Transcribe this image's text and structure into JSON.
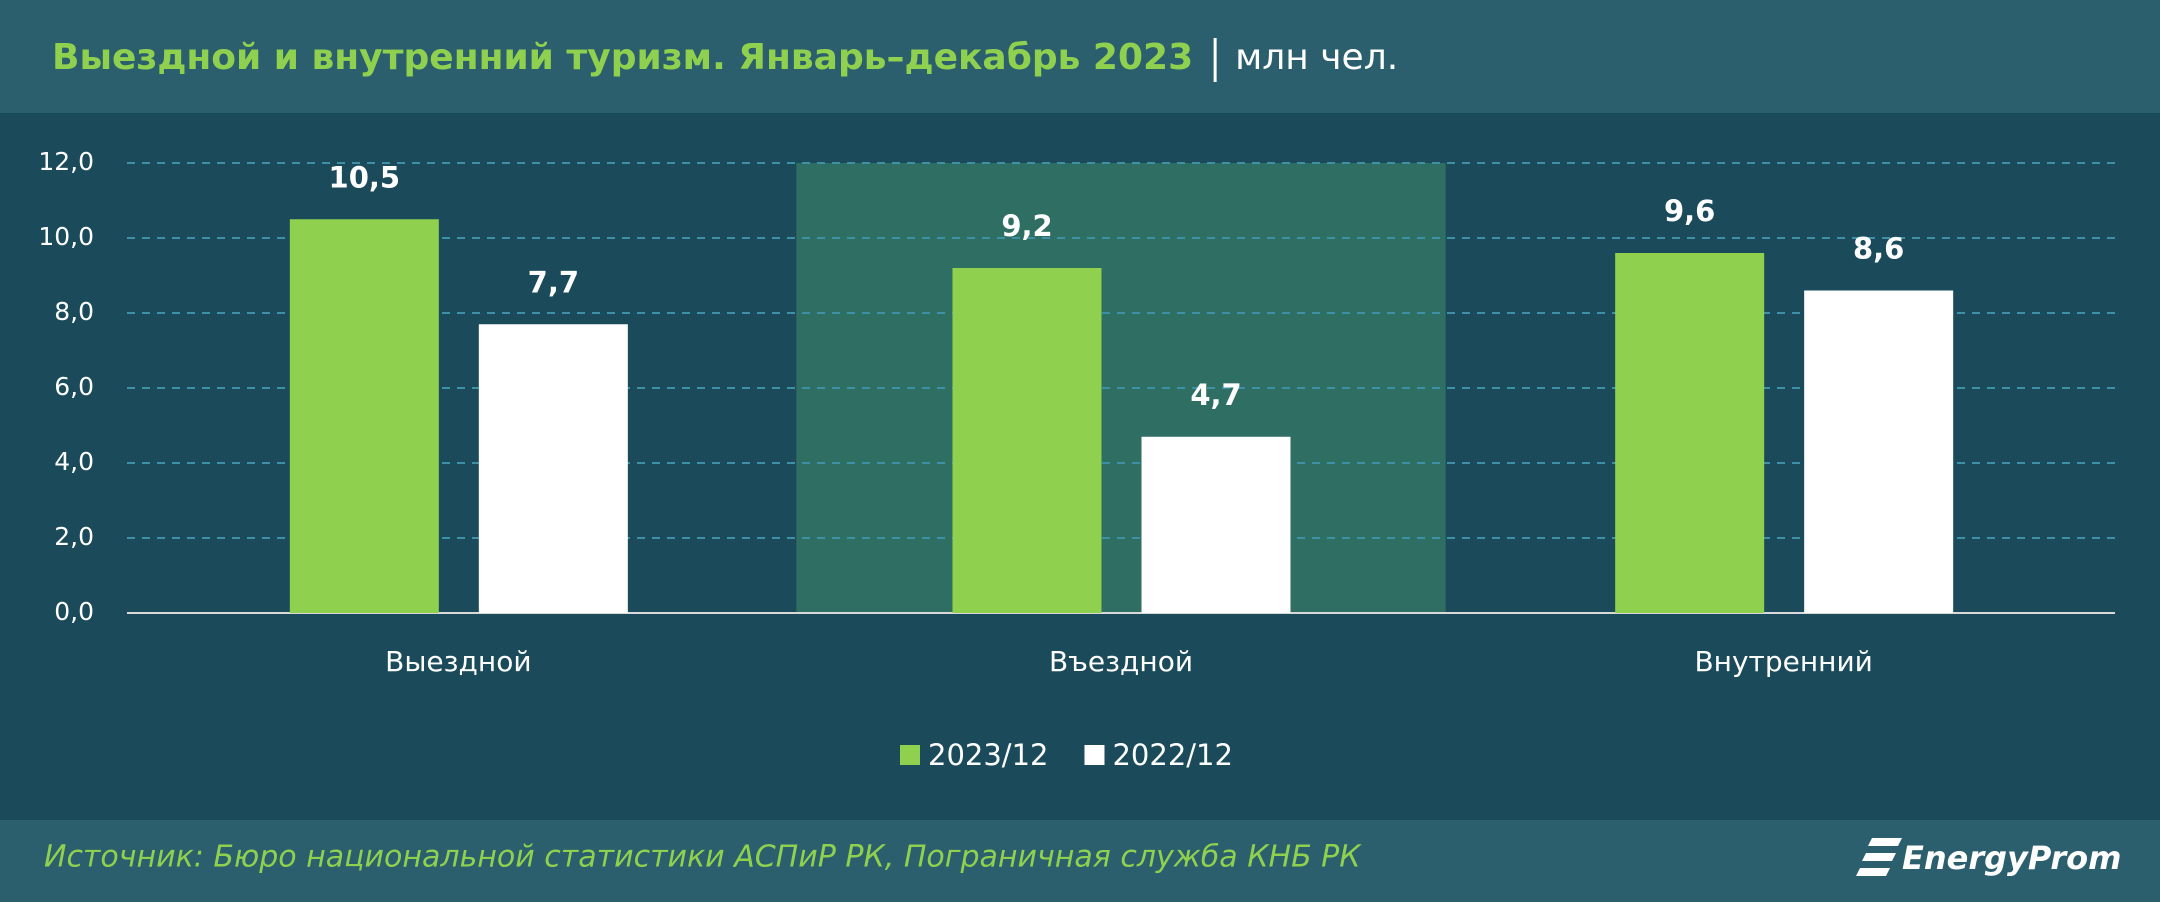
{
  "chart_data": {
    "type": "bar",
    "title": "Выездной и внутренний туризм. Январь–декабрь 2023",
    "unit": "млн чел.",
    "categories": [
      "Выездной",
      "Въездной",
      "Внутренний"
    ],
    "series": [
      {
        "name": "2023/12",
        "color": "#8fd14f",
        "values": [
          10.5,
          9.2,
          9.6
        ],
        "value_labels": [
          "10,5",
          "9,2",
          "9,6"
        ]
      },
      {
        "name": "2022/12",
        "color": "#ffffff",
        "values": [
          7.7,
          4.7,
          8.6
        ],
        "value_labels": [
          "7,7",
          "4,7",
          "8,6"
        ]
      }
    ],
    "ylim": [
      0,
      12
    ],
    "yticks": [
      {
        "value": 0,
        "label": "0,0"
      },
      {
        "value": 2,
        "label": "2,0"
      },
      {
        "value": 4,
        "label": "4,0"
      },
      {
        "value": 6,
        "label": "6,0"
      },
      {
        "value": 8,
        "label": "8,0"
      },
      {
        "value": 10,
        "label": "10,0"
      },
      {
        "value": 12,
        "label": "12,0"
      }
    ],
    "grid": true,
    "highlighted": "Въездной",
    "source": "Источник: Бюро национальной статистики АСПиР РК, Пограничная служба КНБ РК",
    "logo": "EnergyProm"
  }
}
